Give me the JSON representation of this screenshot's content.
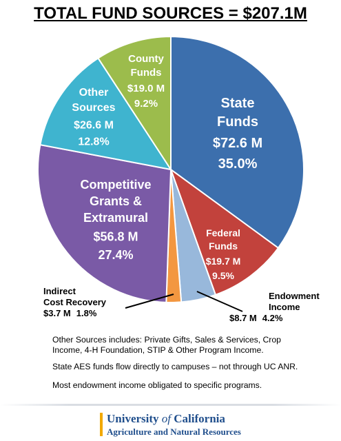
{
  "title": "TOTAL FUND SOURCES = $207.1M",
  "chart_data": {
    "type": "pie",
    "total": "$207.1M",
    "slices": [
      {
        "name": "State Funds",
        "label_lines": [
          "State",
          "Funds"
        ],
        "amount": 72.6,
        "amount_label": "$72.6 M",
        "percent": 35.0,
        "percent_label": "35.0%",
        "color": "#3c6fad"
      },
      {
        "name": "Federal Funds",
        "label_lines": [
          "Federal",
          "Funds"
        ],
        "amount": 19.7,
        "amount_label": "$19.7 M",
        "percent": 9.5,
        "percent_label": "9.5%",
        "color": "#c2423c"
      },
      {
        "name": "Endowment Income",
        "label_lines": [
          "Endowment",
          "Income"
        ],
        "amount": 8.7,
        "amount_label": "$8.7 M",
        "percent": 4.2,
        "percent_label": "4.2%",
        "color": "#98b8db"
      },
      {
        "name": "Indirect Cost Recovery",
        "label_lines": [
          "Indirect",
          "Cost Recovery"
        ],
        "amount": 3.7,
        "amount_label": "$3.7 M",
        "percent": 1.8,
        "percent_label": "1.8%",
        "color": "#f39740"
      },
      {
        "name": "Competitive Grants & Extramural",
        "label_lines": [
          "Competitive",
          "Grants &",
          "Extramural"
        ],
        "amount": 56.8,
        "amount_label": "$56.8 M",
        "percent": 27.4,
        "percent_label": "27.4%",
        "color": "#7a5aa6"
      },
      {
        "name": "Other Sources",
        "label_lines": [
          "Other",
          "Sources"
        ],
        "amount": 26.6,
        "amount_label": "$26.6 M",
        "percent": 12.8,
        "percent_label": "12.8%",
        "color": "#3fb4cf"
      },
      {
        "name": "County Funds",
        "label_lines": [
          "County",
          "Funds"
        ],
        "amount": 19.0,
        "amount_label": "$19.0 M",
        "percent": 9.2,
        "percent_label": "9.2%",
        "color": "#9cbc4c"
      }
    ]
  },
  "notes": [
    "Other Sources includes: Private Gifts, Sales & Services, Crop Income, 4-H Foundation, STIP & Other Program Income.",
    "State AES funds flow directly  to campuses – not through UC ANR.",
    "Most endowment income obligated to specific programs."
  ],
  "footer": {
    "org_prefix": "University ",
    "org_of": "of",
    "org_suffix": " California",
    "division": "Agriculture and Natural Resources",
    "accent_color": "#f2a900",
    "brand_color": "#1f4e8c"
  }
}
